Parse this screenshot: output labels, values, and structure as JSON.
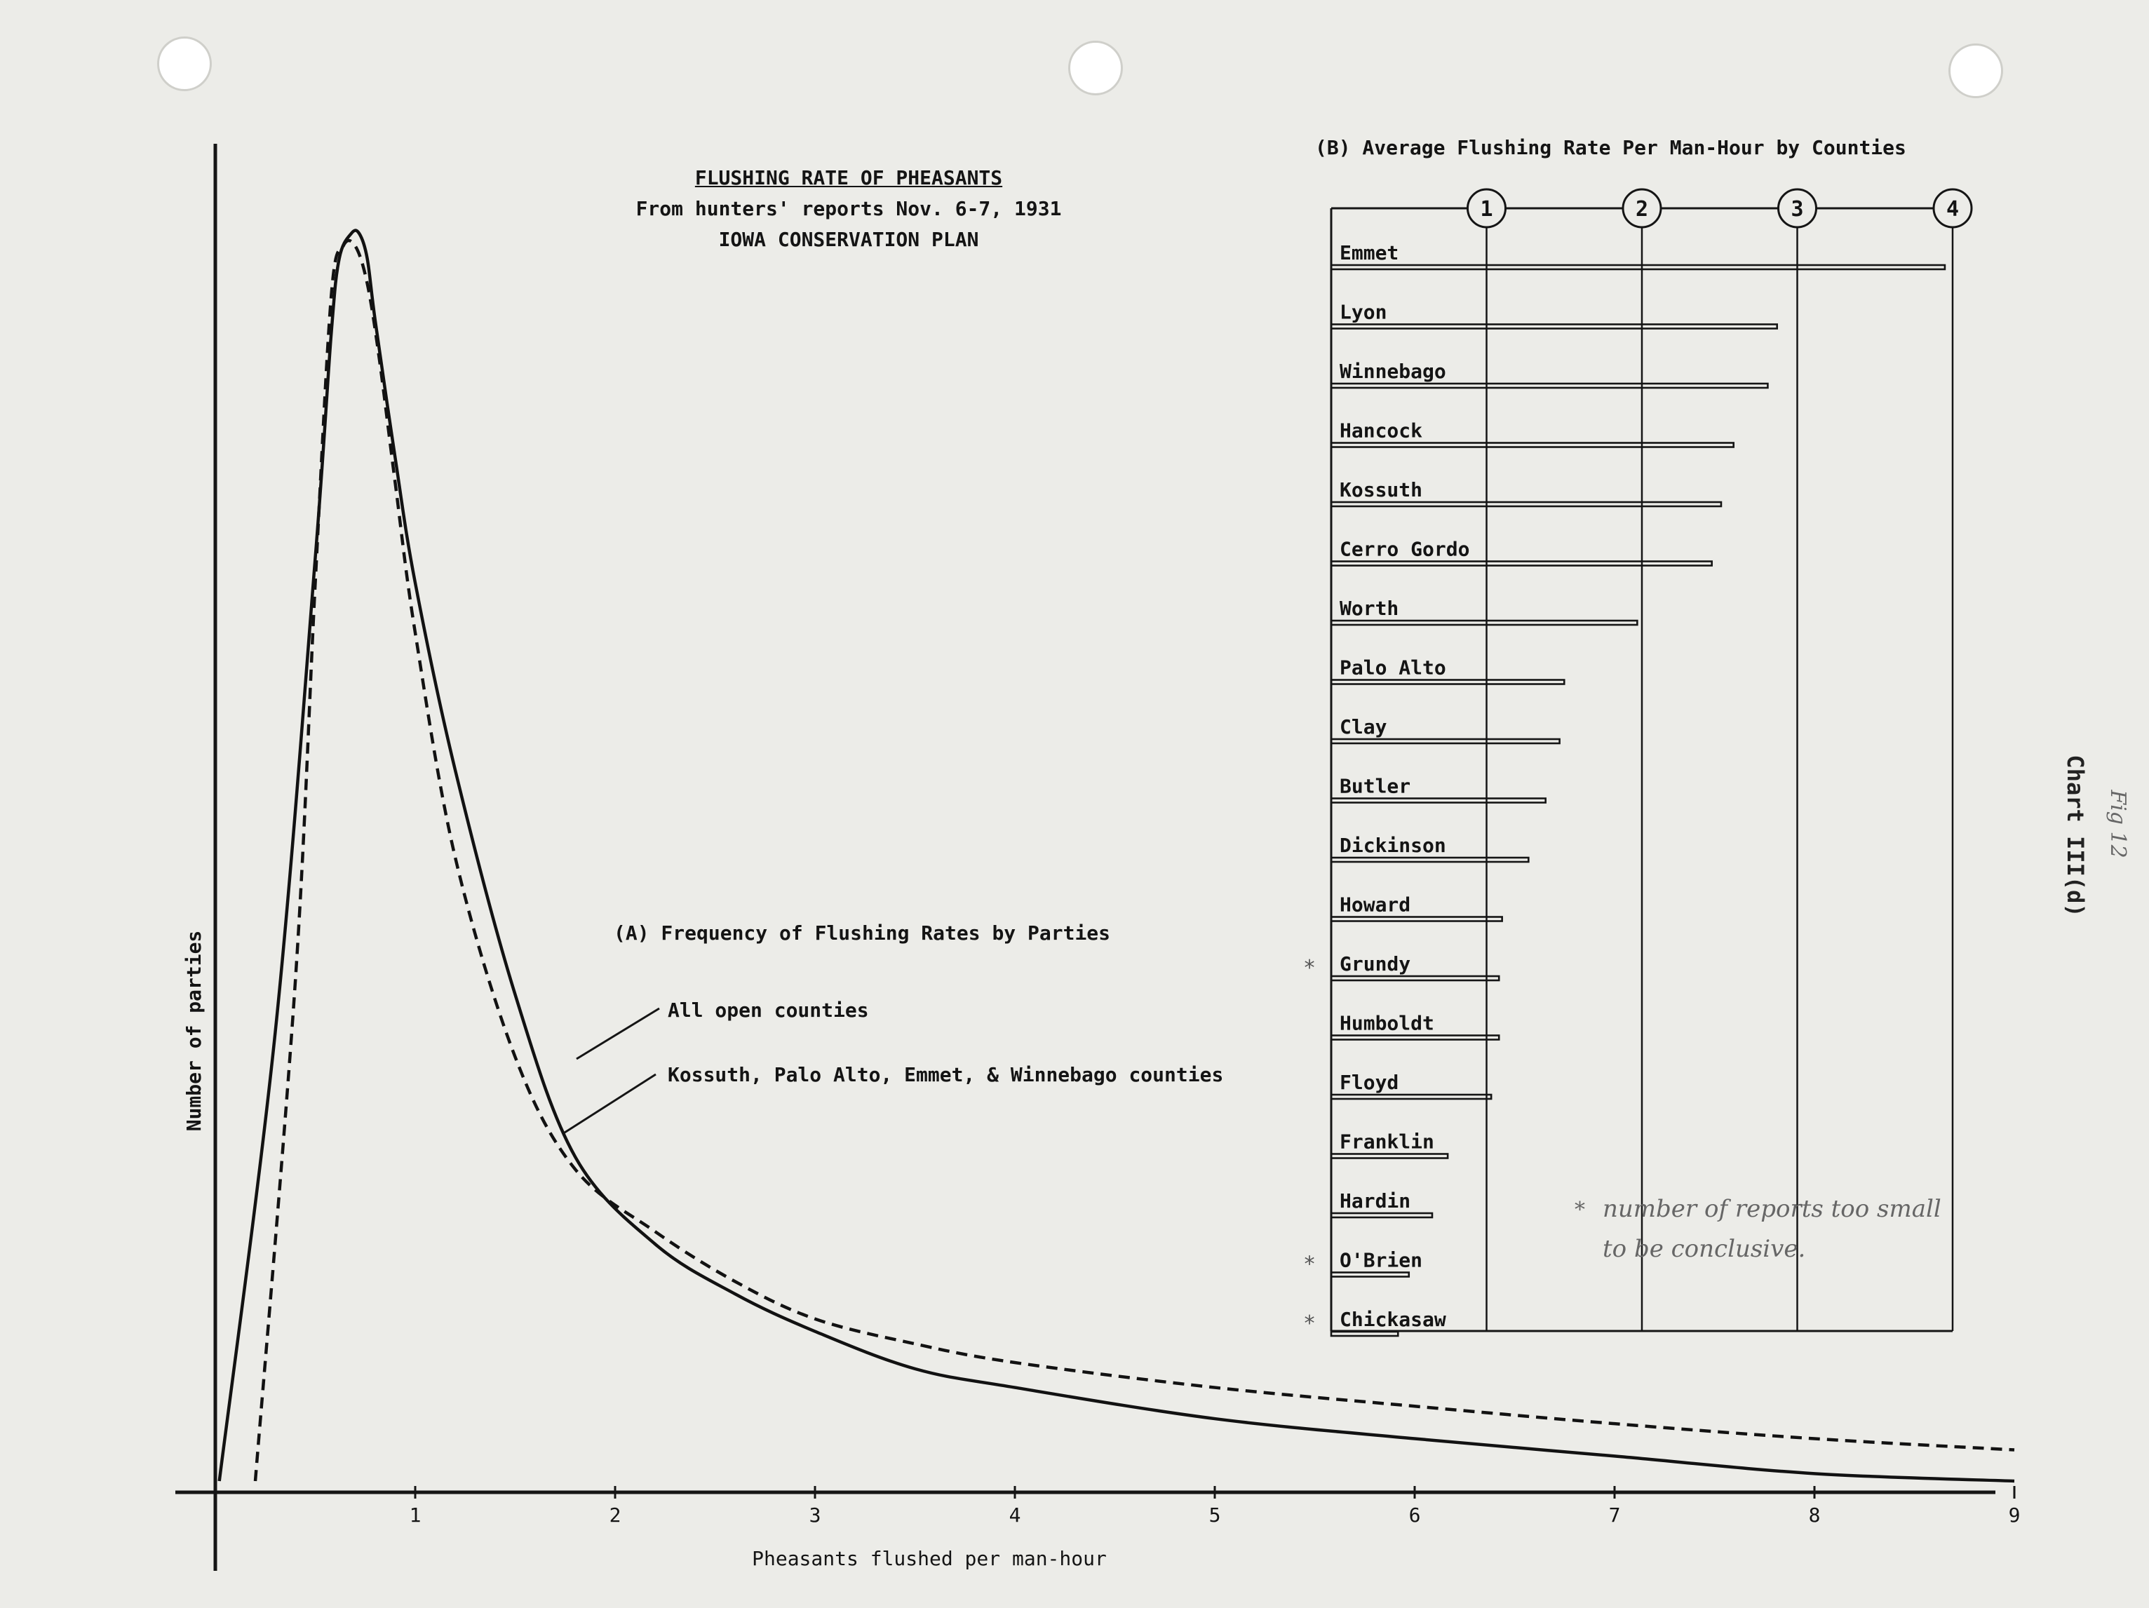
{
  "titles": {
    "main": "FLUSHING RATE OF PHEASANTS",
    "sub": "From hunters' reports Nov. 6-7, 1931",
    "plan": "IOWA CONSERVATION PLAN"
  },
  "side_label": "Chart III(d)",
  "side_note": "Fig 12",
  "footnote": {
    "star": "*",
    "line1": "number of reports too small",
    "line2": "to be conclusive."
  },
  "chart_data": [
    {
      "type": "line",
      "title": "(A) Frequency of Flushing Rates by Parties",
      "xlabel": "Pheasants flushed per man-hour",
      "ylabel": "Number of parties",
      "xlim": [
        0,
        9
      ],
      "x_ticks": [
        "1",
        "2",
        "3",
        "4",
        "5",
        "6",
        "7",
        "8",
        "9"
      ],
      "y_ticks": [],
      "grid": false,
      "series": [
        {
          "name": "All open counties",
          "style": "solid",
          "x": [
            0.02,
            0.3,
            0.5,
            0.58,
            0.62,
            0.68,
            0.72,
            0.76,
            0.8,
            0.9,
            1.0,
            1.2,
            1.5,
            1.8,
            2.2,
            2.6,
            3.0,
            3.5,
            4.0,
            5.0,
            6.0,
            7.0,
            8.0,
            9.0
          ],
          "y": [
            0.0,
            0.36,
            0.74,
            0.92,
            0.98,
            1.0,
            1.0,
            0.98,
            0.93,
            0.82,
            0.72,
            0.57,
            0.39,
            0.26,
            0.19,
            0.15,
            0.12,
            0.09,
            0.075,
            0.05,
            0.034,
            0.02,
            0.006,
            0.0
          ]
        },
        {
          "name": "Kossuth, Palo Alto, Emmet, & Winnebago counties",
          "style": "dashed",
          "x": [
            0.2,
            0.4,
            0.5,
            0.58,
            0.64,
            0.7,
            0.76,
            0.82,
            0.9,
            1.0,
            1.2,
            1.5,
            1.8,
            2.2,
            2.6,
            3.0,
            3.5,
            4.0,
            5.0,
            6.0,
            7.0,
            8.0,
            9.0
          ],
          "y": [
            0.0,
            0.4,
            0.72,
            0.95,
            0.99,
            0.99,
            0.96,
            0.9,
            0.8,
            0.68,
            0.5,
            0.34,
            0.25,
            0.2,
            0.16,
            0.13,
            0.11,
            0.095,
            0.075,
            0.06,
            0.046,
            0.034,
            0.025
          ]
        }
      ]
    },
    {
      "type": "bar",
      "orientation": "horizontal",
      "title": "(B) Average Flushing Rate Per Man-Hour by Counties",
      "x_ticks": [
        "1",
        "2",
        "3",
        "4"
      ],
      "xlim": [
        0,
        4
      ],
      "grid": true,
      "categories": [
        "Emmet",
        "Lyon",
        "Winnebago",
        "Hancock",
        "Kossuth",
        "Cerro Gordo",
        "Worth",
        "Palo Alto",
        "Clay",
        "Butler",
        "Dickinson",
        "Howard",
        "Grundy",
        "Humboldt",
        "Floyd",
        "Franklin",
        "Hardin",
        "O'Brien",
        "Chickasaw"
      ],
      "values": [
        3.95,
        2.87,
        2.81,
        2.59,
        2.51,
        2.45,
        1.97,
        1.5,
        1.47,
        1.38,
        1.27,
        1.1,
        1.08,
        1.08,
        1.03,
        0.75,
        0.65,
        0.5,
        0.43
      ],
      "asterisk": [
        false,
        false,
        false,
        false,
        false,
        false,
        false,
        false,
        false,
        false,
        false,
        false,
        true,
        false,
        false,
        false,
        false,
        true,
        true
      ]
    }
  ]
}
